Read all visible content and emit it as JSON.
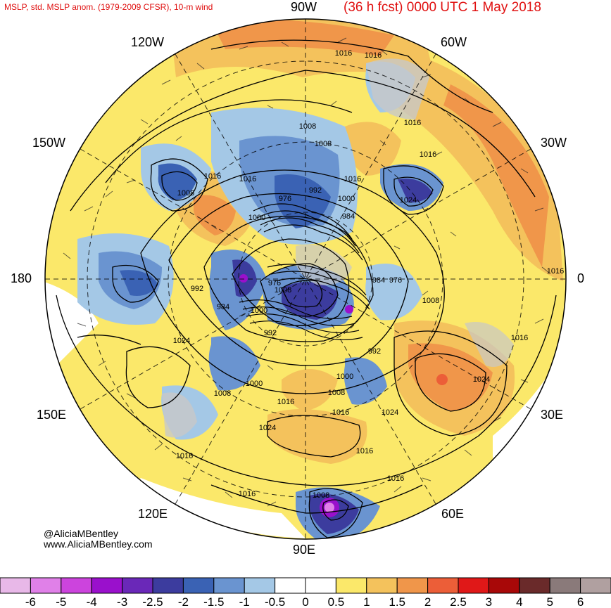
{
  "header": {
    "left": "MSLP, std. MSLP anom. (1979-2009 CFSR), 10-m wind",
    "right": "(36 h fcst) 0000 UTC 1 May 2018"
  },
  "longitude_labels": {
    "lon_90w": "90W",
    "lon_120w": "120W",
    "lon_60w": "60W",
    "lon_150w": "150W",
    "lon_30w": "30W",
    "lon_180": "180",
    "lon_0": "0",
    "lon_150e": "150E",
    "lon_30e": "30E",
    "lon_120e": "120E",
    "lon_60e": "60E",
    "lon_90e": "90E"
  },
  "credits": {
    "handle": "@AliciaMBentley",
    "site": "www.AliciaMBentley.com"
  },
  "isobar_labels": [
    "1016",
    "1016",
    "1016",
    "1008",
    "1016",
    "1016",
    "1008",
    "992",
    "1000",
    "976",
    "984",
    "1000",
    "1008",
    "1016",
    "1016",
    "992",
    "976",
    "1008",
    "984",
    "976",
    "1008",
    "1000",
    "992",
    "984",
    "992",
    "1000",
    "1008",
    "1016",
    "1024",
    "1016",
    "1024",
    "1000",
    "1008",
    "1016",
    "1024",
    "1024",
    "1016",
    "1016",
    "1008",
    "1016",
    "1016",
    "1024",
    "1016"
  ],
  "colorbar": {
    "ticks": [
      "-6",
      "-5",
      "-4",
      "-3",
      "-2.5",
      "-2",
      "-1.5",
      "-1",
      "-0.5",
      "0",
      "0.5",
      "1",
      "1.5",
      "2",
      "2.5",
      "3",
      "4",
      "5",
      "6"
    ],
    "colors": [
      "#e8b8e8",
      "#e080e8",
      "#cc44dd",
      "#9a10cc",
      "#6a28b8",
      "#3c3c9e",
      "#3a62b4",
      "#6a94d0",
      "#a4c8e6",
      "#ffffff",
      "#ffffff",
      "#fbe86a",
      "#f4c25c",
      "#f0964a",
      "#ec5e38",
      "#e01818",
      "#a80808",
      "#6a2a2a",
      "#8a7a7a",
      "#b0a0a0"
    ]
  },
  "map_colors": {
    "positive_weak": "#fbe86a",
    "positive_mid": "#f4c25c",
    "positive_strong": "#f0964a",
    "positive_max": "#ec5e38",
    "negative_weak": "#a4c8e6",
    "negative_mid": "#6a94d0",
    "negative_strong": "#3a62b4",
    "negative_max": "#3c3c9e",
    "negative_extreme": "#9a10cc",
    "land_mask": "#c8c8c8"
  }
}
